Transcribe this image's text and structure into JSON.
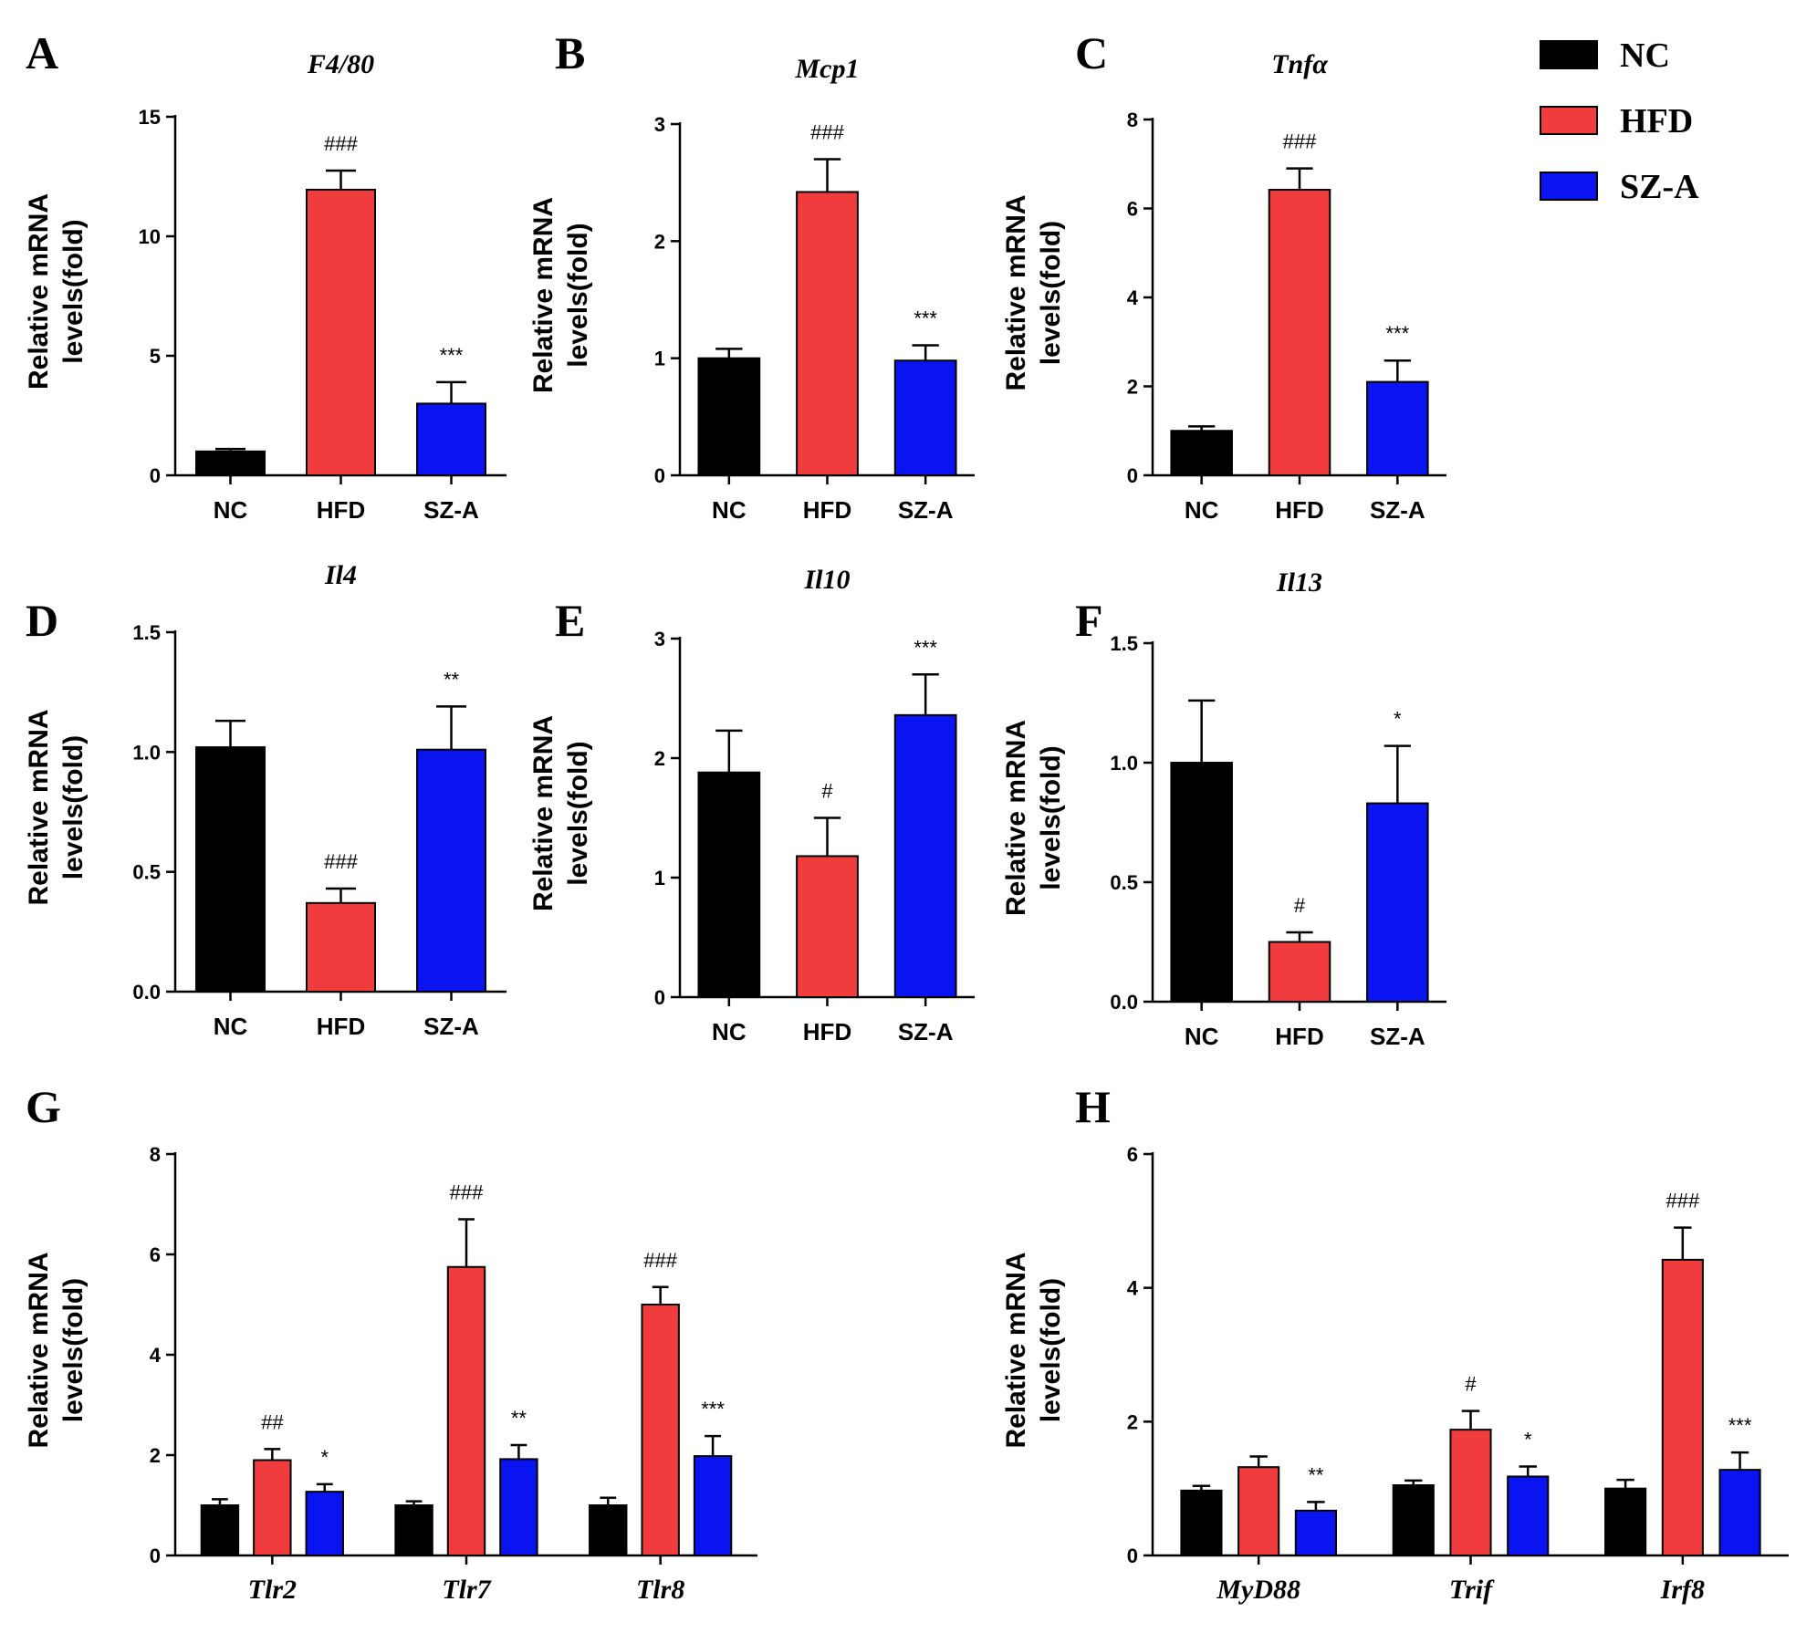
{
  "legend": {
    "items": [
      {
        "name": "NC",
        "color": "#000000"
      },
      {
        "name": "HFD",
        "color": "#f03c3c"
      },
      {
        "name": "SZ-A",
        "color": "#0a14f0"
      }
    ]
  },
  "chart_data": [
    {
      "id": "A",
      "letter": "A",
      "type": "bar",
      "title": "F4/80",
      "ylabel_line1": "Relative mRNA",
      "ylabel_line2": "levels(fold)",
      "categories": [
        "NC",
        "HFD",
        "SZ-A"
      ],
      "values": [
        1.0,
        11.95,
        3.0
      ],
      "errors": [
        0.1,
        0.8,
        0.9
      ],
      "significance": [
        "",
        "###",
        "***"
      ],
      "ylim": [
        0,
        15
      ],
      "yticks": [
        "0",
        "5",
        "10",
        "15"
      ],
      "ytick_values": [
        0,
        5,
        10,
        15
      ]
    },
    {
      "id": "B",
      "letter": "B",
      "type": "bar",
      "title": "Mcp1",
      "ylabel_line1": "Relative mRNA",
      "ylabel_line2": "levels(fold)",
      "categories": [
        "NC",
        "HFD",
        "SZ-A"
      ],
      "values": [
        1.0,
        2.42,
        0.98
      ],
      "errors": [
        0.08,
        0.28,
        0.13
      ],
      "significance": [
        "",
        "###",
        "***"
      ],
      "ylim": [
        0,
        3
      ],
      "yticks": [
        "0",
        "1",
        "2",
        "3"
      ],
      "ytick_values": [
        0,
        1,
        2,
        3
      ]
    },
    {
      "id": "C",
      "letter": "C",
      "type": "bar",
      "title": "Tnfα",
      "ylabel_line1": "Relative mRNA",
      "ylabel_line2": "levels(fold)",
      "categories": [
        "NC",
        "HFD",
        "SZ-A"
      ],
      "values": [
        1.0,
        6.42,
        2.1
      ],
      "errors": [
        0.1,
        0.48,
        0.48
      ],
      "significance": [
        "",
        "###",
        "***"
      ],
      "ylim": [
        0,
        8
      ],
      "yticks": [
        "0",
        "2",
        "4",
        "6",
        "8"
      ],
      "ytick_values": [
        0,
        2,
        4,
        6,
        8
      ]
    },
    {
      "id": "D",
      "letter": "D",
      "type": "bar",
      "title": "Il4",
      "ylabel_line1": "Relative mRNA",
      "ylabel_line2": "levels(fold)",
      "categories": [
        "NC",
        "HFD",
        "SZ-A"
      ],
      "values": [
        1.02,
        0.37,
        1.01
      ],
      "errors": [
        0.11,
        0.06,
        0.18
      ],
      "significance": [
        "",
        "###",
        "**"
      ],
      "ylim": [
        0,
        1.5
      ],
      "yticks": [
        "0.0",
        "0.5",
        "1.0",
        "1.5"
      ],
      "ytick_values": [
        0,
        0.5,
        1.0,
        1.5
      ]
    },
    {
      "id": "E",
      "letter": "E",
      "type": "bar",
      "title": "Il10",
      "ylabel_line1": "Relative mRNA",
      "ylabel_line2": "levels(fold)",
      "categories": [
        "NC",
        "HFD",
        "SZ-A"
      ],
      "values": [
        1.88,
        1.18,
        2.36
      ],
      "errors": [
        0.35,
        0.32,
        0.34
      ],
      "significance": [
        "",
        "#",
        "***"
      ],
      "ylim": [
        0,
        3
      ],
      "yticks": [
        "0",
        "1",
        "2",
        "3"
      ],
      "ytick_values": [
        0,
        1,
        2,
        3
      ]
    },
    {
      "id": "F",
      "letter": "F",
      "type": "bar",
      "title": "Il13",
      "ylabel_line1": "Relative mRNA",
      "ylabel_line2": "levels(fold)",
      "categories": [
        "NC",
        "HFD",
        "SZ-A"
      ],
      "values": [
        1.0,
        0.25,
        0.83
      ],
      "errors": [
        0.26,
        0.04,
        0.24
      ],
      "significance": [
        "",
        "#",
        "*"
      ],
      "ylim": [
        0,
        1.5
      ],
      "yticks": [
        "0.0",
        "0.5",
        "1.0",
        "1.5"
      ],
      "ytick_values": [
        0,
        0.5,
        1.0,
        1.5
      ]
    },
    {
      "id": "G",
      "letter": "G",
      "type": "grouped-bar",
      "title": "",
      "ylabel_line1": "Relative mRNA",
      "ylabel_line2": "levels(fold)",
      "categories": [
        "Tlr2",
        "Tlr7",
        "Tlr8"
      ],
      "series": [
        {
          "name": "NC",
          "values": [
            1.0,
            1.0,
            1.0
          ],
          "errors": [
            0.12,
            0.08,
            0.15
          ],
          "significance": [
            "",
            "",
            ""
          ]
        },
        {
          "name": "HFD",
          "values": [
            1.9,
            5.75,
            5.0
          ],
          "errors": [
            0.22,
            0.95,
            0.35
          ],
          "significance": [
            "##",
            "###",
            "###"
          ]
        },
        {
          "name": "SZ-A",
          "values": [
            1.27,
            1.92,
            1.98
          ],
          "errors": [
            0.15,
            0.28,
            0.4
          ],
          "significance": [
            "*",
            "**",
            "***"
          ]
        }
      ],
      "ylim": [
        0,
        8
      ],
      "yticks": [
        "0",
        "2",
        "4",
        "6",
        "8"
      ],
      "ytick_values": [
        0,
        2,
        4,
        6,
        8
      ]
    },
    {
      "id": "H",
      "letter": "H",
      "type": "grouped-bar",
      "title": "",
      "ylabel_line1": "Relative mRNA",
      "ylabel_line2": "levels(fold)",
      "categories": [
        "MyD88",
        "Trif",
        "Irf8"
      ],
      "series": [
        {
          "name": "NC",
          "values": [
            0.97,
            1.05,
            1.0
          ],
          "errors": [
            0.07,
            0.07,
            0.13
          ],
          "significance": [
            "",
            "",
            ""
          ]
        },
        {
          "name": "HFD",
          "values": [
            1.32,
            1.88,
            4.42
          ],
          "errors": [
            0.16,
            0.28,
            0.48
          ],
          "significance": [
            "",
            "#",
            "###"
          ]
        },
        {
          "name": "SZ-A",
          "values": [
            0.67,
            1.18,
            1.28
          ],
          "errors": [
            0.13,
            0.15,
            0.26
          ],
          "significance": [
            "**",
            "*",
            "***"
          ]
        }
      ],
      "ylim": [
        0,
        6
      ],
      "yticks": [
        "0",
        "2",
        "4",
        "6"
      ],
      "ytick_values": [
        0,
        2,
        4,
        6
      ]
    }
  ]
}
